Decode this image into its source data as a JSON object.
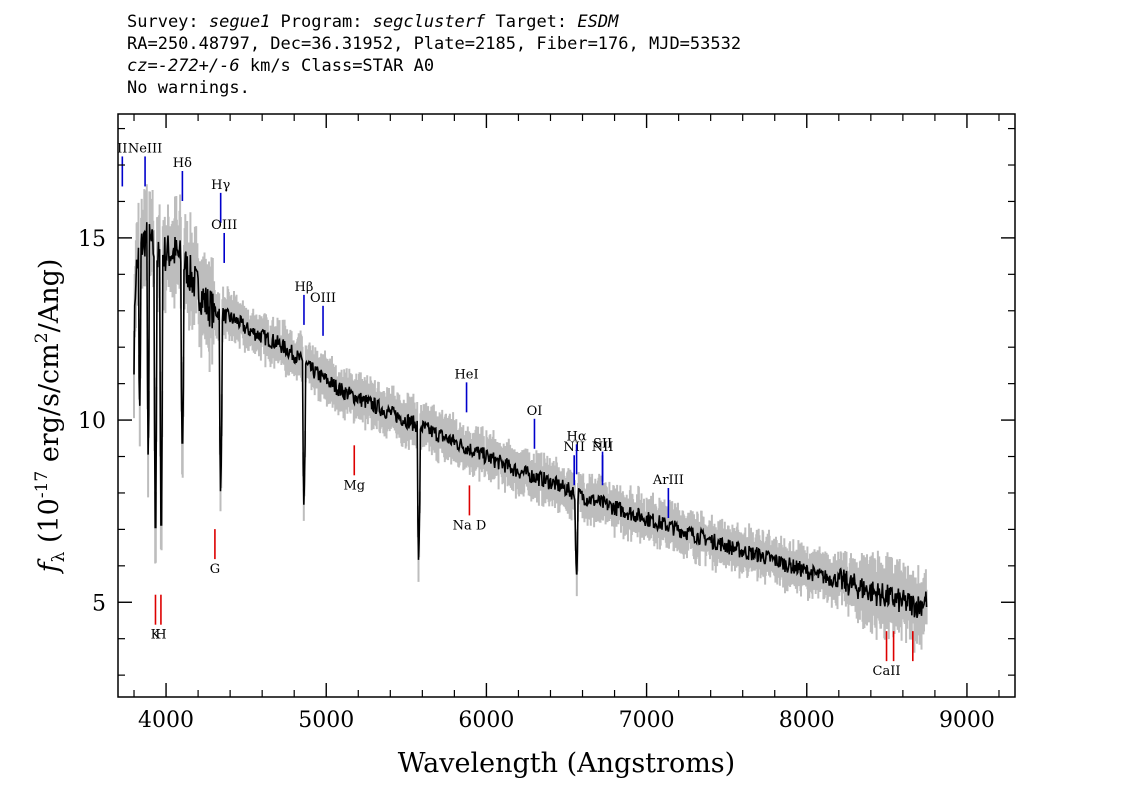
{
  "header": {
    "survey_prefix": "Survey: ",
    "survey": "segue1",
    "program_prefix": " Program: ",
    "program": "segclusterf",
    "target_prefix": " Target: ",
    "target": "ESDM",
    "line2": "RA=250.48797, Dec=36.31952, Plate=2185, Fiber=176, MJD=53532",
    "cz_label": "cz",
    "cz_value": "=-272+/-6",
    "cz_rest": " km/s Class=STAR A0",
    "line4": "No warnings."
  },
  "colors": {
    "spectrum": "#000000",
    "error_band": "#bdbdbd",
    "emission": "#0000cc",
    "absorption": "#dd0000"
  },
  "chart_data": {
    "type": "line",
    "xlabel": "Wavelength (Angstroms)",
    "ylabel_flux": "f",
    "ylabel_sub": "λ",
    "ylabel_rest": " (10",
    "ylabel_exp": "-17",
    "ylabel_units": " erg/s/cm",
    "ylabel_exp2": "2",
    "ylabel_tail": "/Ang)",
    "xlim": [
      3700,
      9300
    ],
    "ylim": [
      2.4,
      18.4
    ],
    "xticks": [
      4000,
      5000,
      6000,
      7000,
      8000,
      9000
    ],
    "xtick_labels": [
      "4000",
      "5000",
      "6000",
      "7000",
      "8000",
      "9000"
    ],
    "yticks": [
      5,
      10,
      15
    ],
    "ytick_labels": [
      "5",
      "10",
      "15"
    ],
    "grid": false,
    "series": [
      {
        "x": [
          3800,
          3810,
          3830,
          3850,
          3870,
          3900,
          3920,
          3950,
          4000,
          4050,
          4100,
          4150,
          4200,
          4250,
          4300,
          4350,
          4400,
          4450,
          4500,
          4600,
          4700,
          4800,
          4900,
          5000,
          5100,
          5200,
          5300,
          5400,
          5500,
          5600,
          5700,
          5800,
          5900,
          6000,
          6100,
          6200,
          6300,
          6400,
          6500,
          6600,
          6700,
          6800,
          6900,
          7000,
          7100,
          7200,
          7300,
          7400,
          7500,
          7600,
          7700,
          7800,
          7900,
          8000,
          8100,
          8200,
          8300,
          8400,
          8500,
          8600,
          8700,
          8750
        ],
        "y": [
          11.8,
          14.0,
          14.5,
          14.8,
          15.0,
          14.9,
          14.7,
          14.4,
          14.6,
          14.6,
          14.4,
          14.0,
          13.6,
          13.2,
          13.0,
          12.9,
          12.8,
          12.7,
          12.5,
          12.3,
          12.1,
          11.8,
          11.4,
          11.1,
          10.8,
          10.6,
          10.4,
          10.2,
          10.0,
          9.8,
          9.6,
          9.4,
          9.2,
          9.0,
          8.8,
          8.6,
          8.45,
          8.3,
          8.1,
          7.9,
          7.75,
          7.6,
          7.45,
          7.3,
          7.15,
          7.0,
          6.85,
          6.7,
          6.55,
          6.4,
          6.3,
          6.15,
          6.0,
          5.85,
          5.7,
          5.6,
          5.45,
          5.3,
          5.15,
          5.0,
          4.9,
          5.1
        ]
      }
    ],
    "absorption_dips": [
      {
        "x": 3835,
        "y": 10.0
      },
      {
        "x": 3889,
        "y": 8.5
      },
      {
        "x": 3934,
        "y": 5.5
      },
      {
        "x": 3970,
        "y": 5.6
      },
      {
        "x": 4102,
        "y": 8.6
      },
      {
        "x": 4341,
        "y": 7.7
      },
      {
        "x": 4861,
        "y": 7.4
      },
      {
        "x": 5577,
        "y": 5.9
      },
      {
        "x": 6563,
        "y": 5.6
      }
    ],
    "emission_lines": [
      {
        "label": "II",
        "x": 3727,
        "label_y": 17.4
      },
      {
        "label": "NeIII",
        "x": 3869,
        "label_y": 17.4
      },
      {
        "label": "Hδ",
        "x": 4102,
        "label_y": 17.0
      },
      {
        "label": "Hγ",
        "x": 4341,
        "label_y": 16.4
      },
      {
        "label": "OIII",
        "x": 4363,
        "label_y": 15.3
      },
      {
        "label": "Hβ",
        "x": 4861,
        "label_y": 13.6
      },
      {
        "label": "OIII",
        "x": 4980,
        "label_y": 13.3
      },
      {
        "label": "HeI",
        "x": 5876,
        "label_y": 11.2
      },
      {
        "label": "OI",
        "x": 6300,
        "label_y": 10.2
      },
      {
        "label": "NII",
        "x": 6548,
        "label_y": 9.2
      },
      {
        "label": "Hα",
        "x": 6563,
        "label_y": 9.5
      },
      {
        "label": "NII",
        "x": 6725,
        "label_y": 9.2
      },
      {
        "label": "SII",
        "x": 6725,
        "label_y": 9.3
      },
      {
        "label": "ArIII",
        "x": 7136,
        "label_y": 8.3
      }
    ],
    "absorption_lines": [
      {
        "label": "K",
        "x": 3934,
        "label_y": 4.0
      },
      {
        "label": "H",
        "x": 3968,
        "label_y": 4.0
      },
      {
        "label": "G",
        "x": 4305,
        "label_y": 5.8
      },
      {
        "label": "Mg",
        "x": 5175,
        "label_y": 8.1
      },
      {
        "label": "Na D",
        "x": 5894,
        "label_y": 7.0
      },
      {
        "label": "CaII",
        "x": 8498,
        "label_y": 3.0
      },
      {
        "label": "CaII",
        "x": 8542,
        "label_y": 3.0
      },
      {
        "label": "CaII",
        "x": 8662,
        "label_y": 3.0
      }
    ]
  }
}
